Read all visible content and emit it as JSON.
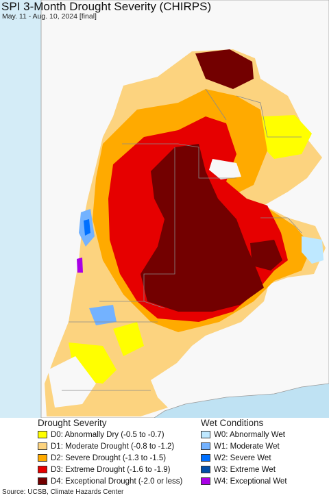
{
  "title": "SPI 3-Month Drought Severity (CHIRPS)",
  "subtitle": "May. 11 - Aug. 10, 2024 [final]",
  "colors": {
    "ocean": "#bfe2f3",
    "land_bg": "#f8f8f8",
    "border": "#888888",
    "D0": "#ffff00",
    "D1": "#fcd37f",
    "D2": "#ffaa00",
    "D3": "#e60000",
    "D4": "#730000",
    "W0": "#bee8ff",
    "W1": "#73b2ff",
    "W2": "#0070ff",
    "W3": "#004da8",
    "W4": "#a900e6"
  },
  "legend": {
    "drought_title": "Drought Severity",
    "wet_title": "Wet Conditions",
    "drought": [
      {
        "code": "D0",
        "label": "D0: Abnormally Dry (-0.5 to -0.7)"
      },
      {
        "code": "D1",
        "label": "D1: Moderate Drought (-0.8 to -1.2)"
      },
      {
        "code": "D2",
        "label": "D2: Severe Drought (-1.3 to -1.5)"
      },
      {
        "code": "D3",
        "label": "D3: Extreme Drought (-1.6 to -1.9)"
      },
      {
        "code": "D4",
        "label": "D4: Exceptional Drought (-2.0 or less)"
      }
    ],
    "wet": [
      {
        "code": "W0",
        "label": "W0: Abnormally Wet"
      },
      {
        "code": "W1",
        "label": "W1: Moderate Wet"
      },
      {
        "code": "W2",
        "label": "W2: Severe Wet"
      },
      {
        "code": "W3",
        "label": "W3: Extreme Wet"
      },
      {
        "code": "W4",
        "label": "W4: Exceptional Wet"
      }
    ]
  },
  "footer": "Source: UCSB, Climate Hazards Center"
}
